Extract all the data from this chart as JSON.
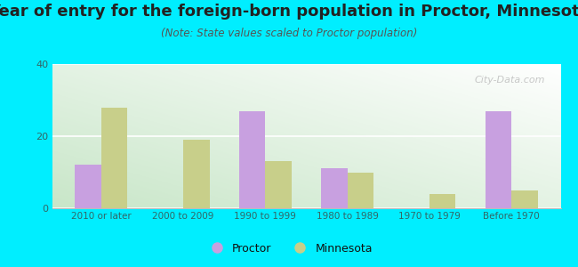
{
  "title": "Year of entry for the foreign-born population in Proctor, Minnesota",
  "subtitle": "(Note: State values scaled to Proctor population)",
  "categories": [
    "2010 or later",
    "2000 to 2009",
    "1990 to 1999",
    "1980 to 1989",
    "1970 to 1979",
    "Before 1970"
  ],
  "proctor_values": [
    12,
    0,
    27,
    11,
    0,
    27
  ],
  "minnesota_values": [
    28,
    19,
    13,
    10,
    4,
    5
  ],
  "proctor_color": "#c8a0e0",
  "minnesota_color": "#c8cf8a",
  "ylim": [
    0,
    40
  ],
  "yticks": [
    0,
    20,
    40
  ],
  "background_outer": "#00eeff",
  "bar_width": 0.32,
  "title_fontsize": 13,
  "subtitle_fontsize": 8.5,
  "tick_color": "#888888",
  "label_color": "#336666",
  "watermark": "City-Data.com"
}
